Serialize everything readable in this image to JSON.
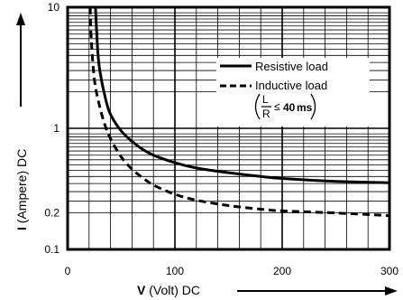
{
  "chart_data": {
    "type": "line",
    "xlabel_bold": "V",
    "xlabel_rest": " (Volt) DC",
    "ylabel_bold": "I",
    "ylabel_rest": " (Ampere) DC",
    "x_scale": "linear",
    "y_scale": "log",
    "xlim": [
      0,
      300
    ],
    "ylim": [
      0.1,
      10
    ],
    "x_ticks": [
      0,
      100,
      200,
      300
    ],
    "x_tick_labels": [
      "0",
      "100",
      "200",
      "300"
    ],
    "y_ticks": [
      0.1,
      0.2,
      1,
      10
    ],
    "y_tick_labels": [
      "0.1",
      "0.2",
      "1",
      "10"
    ],
    "grid": true,
    "legend_position": "top-right",
    "series": [
      {
        "name": "Resistive load",
        "style": "solid",
        "x": [
          26,
          28,
          30,
          35,
          40,
          50,
          60,
          70,
          80,
          100,
          120,
          150,
          180,
          200,
          250,
          300
        ],
        "y": [
          10,
          4.5,
          3.0,
          1.8,
          1.3,
          0.95,
          0.78,
          0.67,
          0.6,
          0.52,
          0.47,
          0.43,
          0.4,
          0.385,
          0.365,
          0.355
        ]
      },
      {
        "name": "Inductive load",
        "style": "dashed",
        "x": [
          21,
          22,
          25,
          30,
          35,
          40,
          50,
          60,
          70,
          80,
          100,
          120,
          150,
          180,
          200,
          250,
          300
        ],
        "y": [
          10,
          5.5,
          2.5,
          1.5,
          1.05,
          0.82,
          0.58,
          0.46,
          0.39,
          0.34,
          0.285,
          0.255,
          0.23,
          0.215,
          0.208,
          0.2,
          0.19
        ]
      }
    ],
    "annotation": {
      "numerator": "L",
      "denominator": "R",
      "relation": "≤",
      "value": "40",
      "unit": "ms"
    }
  }
}
